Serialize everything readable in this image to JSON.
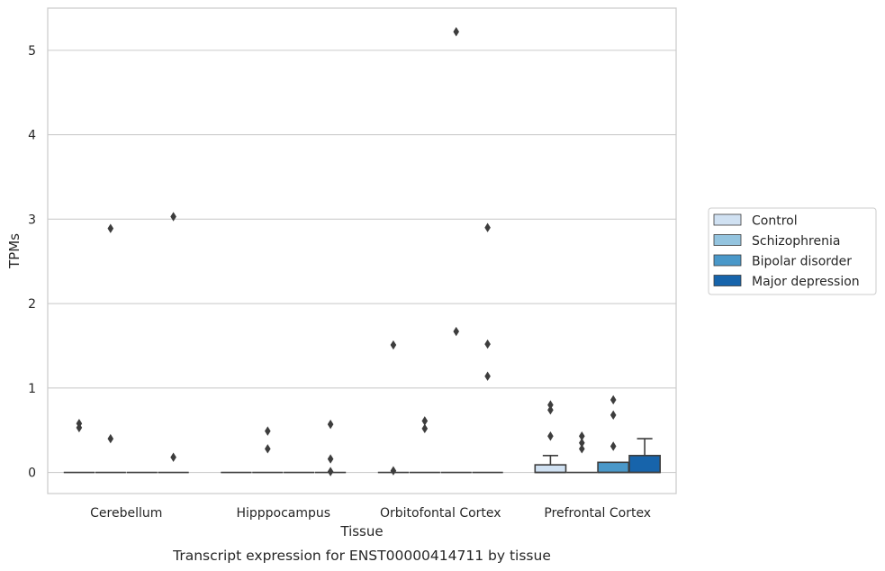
{
  "chart_data": {
    "type": "box",
    "caption": "Transcript expression for ENST00000414711 by tissue",
    "xlabel": "Tissue",
    "ylabel": "TPMs",
    "ylim": [
      -0.25,
      5.5
    ],
    "yticks": [
      0,
      1,
      2,
      3,
      4,
      5
    ],
    "grid": "horizontal",
    "legend_position": "right",
    "categories": [
      "Cerebellum",
      "Hipppocampus",
      "Orbitofontal Cortex",
      "Prefrontal Cortex"
    ],
    "series": [
      {
        "name": "Control",
        "color": "#d0e1f2"
      },
      {
        "name": "Schizophrenia",
        "color": "#94c4df"
      },
      {
        "name": "Bipolar disorder",
        "color": "#4a98c9"
      },
      {
        "name": "Major depression",
        "color": "#1764ab"
      }
    ],
    "boxes": [
      [
        {
          "q1": 0,
          "median": 0,
          "q3": 0,
          "whislo": 0,
          "whishi": 0,
          "fliers": [
            0.58,
            0.53
          ]
        },
        {
          "q1": 0,
          "median": 0,
          "q3": 0,
          "whislo": 0,
          "whishi": 0,
          "fliers": [
            2.89,
            0.4
          ]
        },
        {
          "q1": 0,
          "median": 0,
          "q3": 0,
          "whislo": 0,
          "whishi": 0,
          "fliers": []
        },
        {
          "q1": 0,
          "median": 0,
          "q3": 0,
          "whislo": 0,
          "whishi": 0,
          "fliers": [
            3.03,
            0.18
          ]
        }
      ],
      [
        {
          "q1": 0,
          "median": 0,
          "q3": 0,
          "whislo": 0,
          "whishi": 0,
          "fliers": []
        },
        {
          "q1": 0,
          "median": 0,
          "q3": 0,
          "whislo": 0,
          "whishi": 0,
          "fliers": [
            0.49,
            0.28
          ]
        },
        {
          "q1": 0,
          "median": 0,
          "q3": 0,
          "whislo": 0,
          "whishi": 0,
          "fliers": []
        },
        {
          "q1": 0,
          "median": 0,
          "q3": 0,
          "whislo": 0,
          "whishi": 0,
          "fliers": [
            0.57,
            0.16,
            0.01
          ]
        }
      ],
      [
        {
          "q1": 0,
          "median": 0,
          "q3": 0,
          "whislo": 0,
          "whishi": 0,
          "fliers": [
            1.51,
            0.02
          ]
        },
        {
          "q1": 0,
          "median": 0,
          "q3": 0,
          "whislo": 0,
          "whishi": 0,
          "fliers": [
            0.61,
            0.52
          ]
        },
        {
          "q1": 0,
          "median": 0,
          "q3": 0,
          "whislo": 0,
          "whishi": 0,
          "fliers": [
            5.22,
            1.67
          ]
        },
        {
          "q1": 0,
          "median": 0,
          "q3": 0,
          "whislo": 0,
          "whishi": 0,
          "fliers": [
            2.9,
            1.52,
            1.14
          ]
        }
      ],
      [
        {
          "q1": 0,
          "median": 0,
          "q3": 0.09,
          "whislo": 0,
          "whishi": 0.2,
          "fliers": [
            0.8,
            0.74,
            0.43
          ]
        },
        {
          "q1": 0,
          "median": 0,
          "q3": 0,
          "whislo": 0,
          "whishi": 0,
          "fliers": [
            0.43,
            0.35,
            0.28
          ]
        },
        {
          "q1": 0,
          "median": 0,
          "q3": 0.12,
          "whislo": 0,
          "whishi": 0.12,
          "fliers": [
            0.86,
            0.68,
            0.31
          ]
        },
        {
          "q1": 0,
          "median": 0,
          "q3": 0.2,
          "whislo": 0,
          "whishi": 0.4,
          "fliers": []
        }
      ]
    ]
  }
}
